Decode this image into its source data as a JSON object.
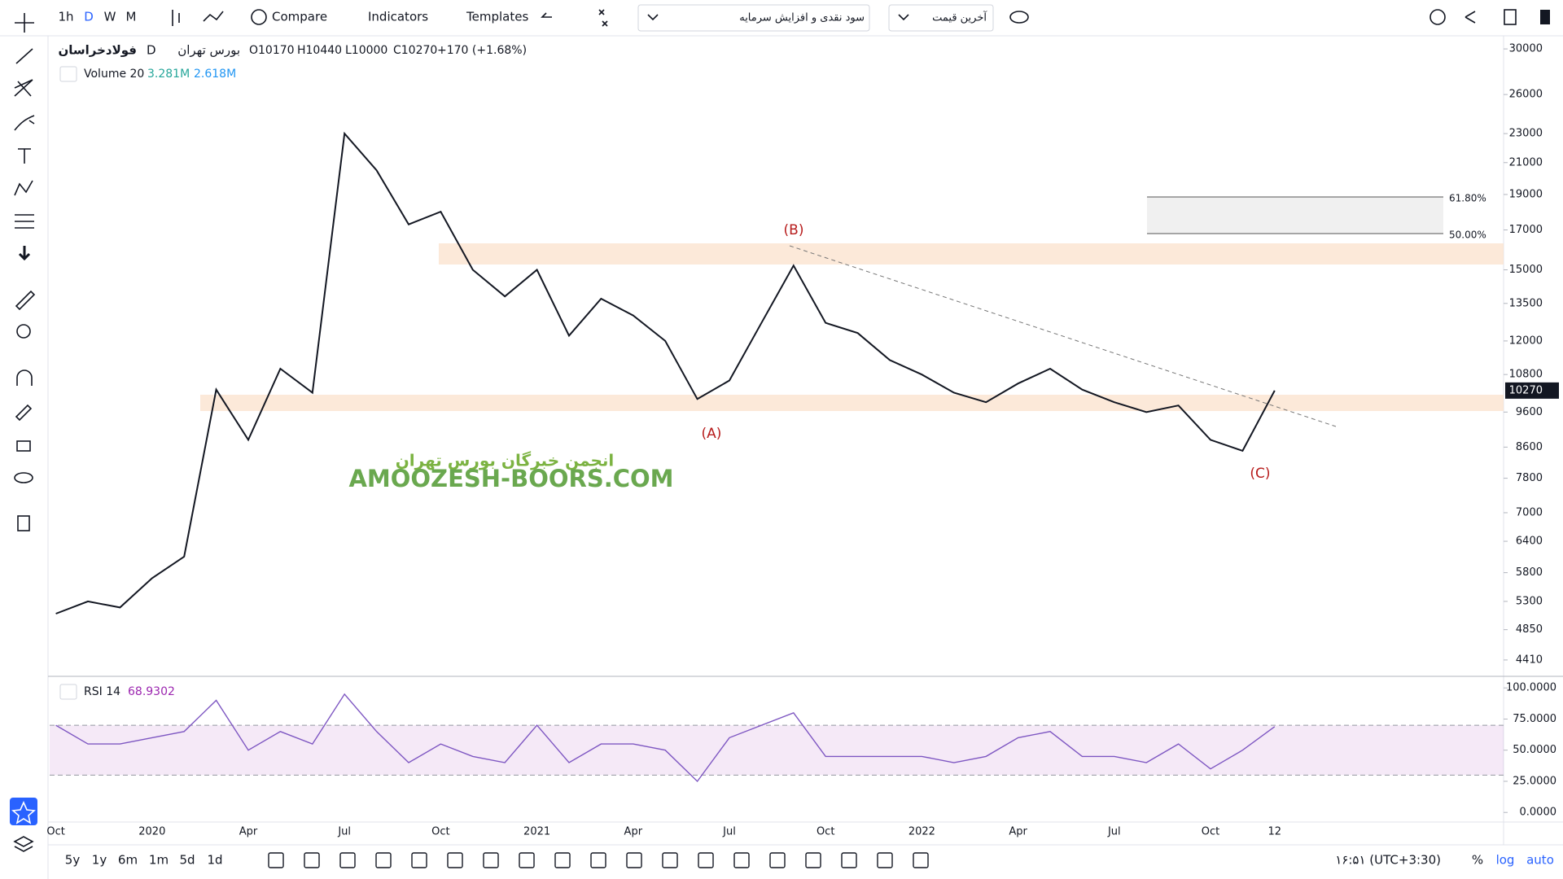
{
  "toolbar": {
    "intervals": [
      "1h",
      "D",
      "W",
      "M"
    ],
    "buttons": [
      "Compare",
      "Indicators",
      "Templates"
    ],
    "dropdowns": [
      "سود نقدی و افزایش سرمایه",
      "آخرین قیمت"
    ]
  },
  "legend": {
    "symbol": "فولادخراسان",
    "interval": "D",
    "exchange": "بورس تهران",
    "ohlc": [
      "O10170",
      "H10440",
      "L10000",
      "C10270",
      "+170 (+1.68%)"
    ],
    "volume_name": "Volume 20",
    "volume_values": [
      "3.281M",
      "2.618M"
    ],
    "rsi_name": "RSI 14"
  },
  "chart_data": [
    {
      "type": "line",
      "log_scale": true,
      "color": "#131722",
      "categories": [
        "Oct",
        null,
        null,
        "2020",
        null,
        null,
        "Apr",
        null,
        null,
        "Jul",
        null,
        null,
        "Oct",
        null,
        null,
        "2021",
        null,
        null,
        "Apr",
        null,
        null,
        "Jul",
        null,
        null,
        "Oct",
        null,
        null,
        "2022",
        null,
        null,
        "Apr",
        null,
        null,
        "Jul",
        null,
        null,
        "Oct",
        null,
        "12"
      ],
      "values": [
        5100,
        5300,
        5200,
        5700,
        6100,
        10300,
        8800,
        11000,
        10200,
        23000,
        20500,
        17300,
        18000,
        15000,
        13800,
        15000,
        12200,
        13700,
        13000,
        12000,
        10000,
        10600,
        12700,
        15200,
        12700,
        12300,
        11300,
        10800,
        10200,
        9900,
        10500,
        11000,
        10300,
        9900,
        9600,
        9800,
        8800,
        8500,
        10270
      ],
      "ylim": [
        4200,
        31100
      ],
      "yticks": [
        30000,
        26000,
        23000,
        21000,
        19000,
        17000,
        15000,
        13500,
        12000,
        10800,
        9600,
        8600,
        7800,
        7000,
        6400,
        5800,
        5300,
        4850,
        4410
      ],
      "last_price": 10270,
      "annotations": [
        "(B)",
        "(A)",
        "(C)",
        "61.80%",
        "50.00%"
      ]
    },
    {
      "type": "line",
      "color": "#7e57c2",
      "values": [
        70,
        55,
        55,
        60,
        65,
        90,
        50,
        65,
        55,
        95,
        65,
        40,
        55,
        45,
        40,
        70,
        40,
        55,
        55,
        50,
        25,
        60,
        70,
        80,
        45,
        45,
        45,
        45,
        40,
        45,
        60,
        65,
        45,
        45,
        40,
        55,
        35,
        50,
        68.9302
      ],
      "ylim": [
        -6.4,
        108
      ],
      "yticks": [
        {
          "value": 100,
          "label": "100.0000"
        },
        {
          "value": 75,
          "label": "75.0000"
        },
        {
          "value": 50,
          "label": "50.0000"
        },
        {
          "value": 25,
          "label": "25.0000"
        },
        {
          "value": 0,
          "label": "0.0000"
        }
      ],
      "band": [
        30,
        70
      ]
    }
  ],
  "watermark": {
    "line1": "انجمن خبرگان بورس تهران",
    "line2": "AMOOZESH-BOORS.COM"
  },
  "bottom_bar": {
    "ranges": [
      "5y",
      "1y",
      "6m",
      "1m",
      "5d",
      "1d"
    ],
    "clock": "۱۶:۵۱ (UTC+3:30)",
    "scale_buttons": [
      "%",
      "log",
      "auto"
    ]
  }
}
